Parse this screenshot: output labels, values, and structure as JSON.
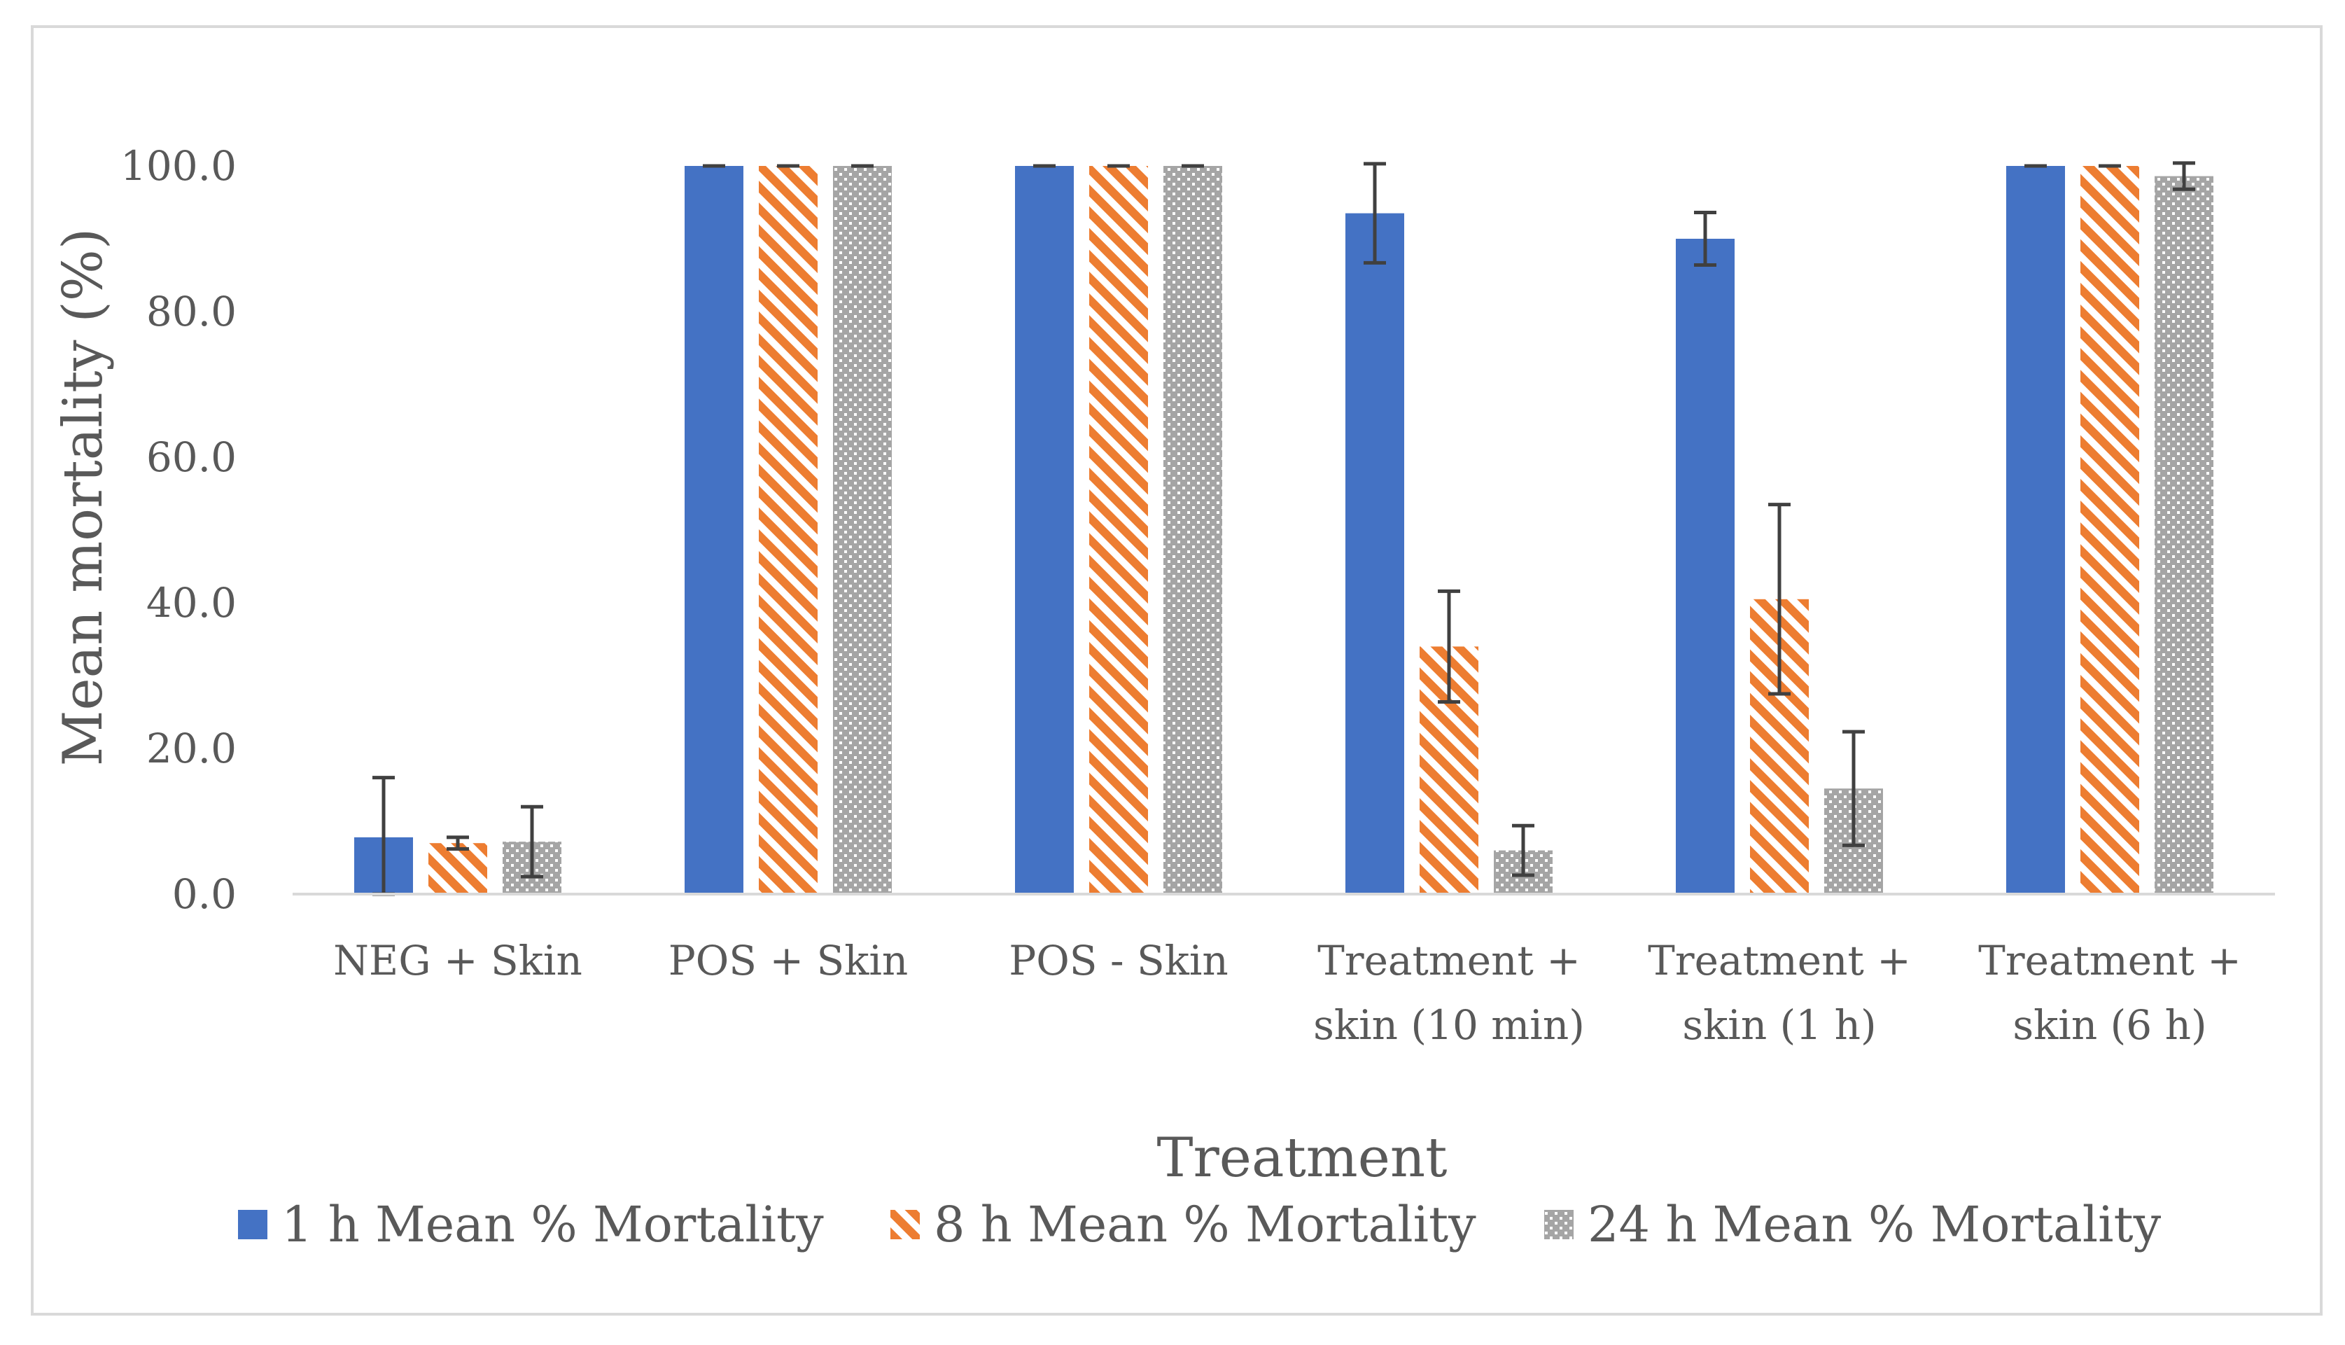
{
  "chart_data": {
    "type": "bar",
    "title": "",
    "xlabel": "Treatment",
    "ylabel": "Mean mortality (%)",
    "ylim": [
      0,
      100
    ],
    "yticks": [
      "0.0",
      "20.0",
      "40.0",
      "60.0",
      "80.0",
      "100.0"
    ],
    "ytick_values": [
      0,
      20,
      40,
      60,
      80,
      100
    ],
    "grid": false,
    "legend_position": "bottom",
    "categories": [
      [
        "NEG + Skin"
      ],
      [
        "POS + Skin"
      ],
      [
        "POS - Skin"
      ],
      [
        "Treatment +",
        "skin (10 min)"
      ],
      [
        "Treatment +",
        "skin (1 h)"
      ],
      [
        "Treatment +",
        "skin (6 h)"
      ]
    ],
    "series": [
      {
        "name": "1 h Mean % Mortality",
        "color": "#4472c4",
        "pattern": "solid",
        "values": [
          7.8,
          100,
          100,
          93.5,
          90,
          100
        ],
        "errors": [
          8.2,
          0,
          0,
          6.8,
          3.6,
          0
        ]
      },
      {
        "name": "8 h Mean % Mortality",
        "color": "#ed7d31",
        "pattern": "diagonal-stripes",
        "values": [
          7,
          100,
          100,
          34,
          40.5,
          100
        ],
        "errors": [
          0.8,
          0,
          0,
          7.6,
          13,
          0
        ]
      },
      {
        "name": "24 h Mean % Mortality",
        "color": "#a5a5a5",
        "pattern": "dots",
        "values": [
          7.2,
          100,
          100,
          6,
          14.5,
          98.6
        ],
        "errors": [
          4.8,
          0,
          0,
          3.4,
          7.8,
          1.8
        ]
      }
    ]
  }
}
